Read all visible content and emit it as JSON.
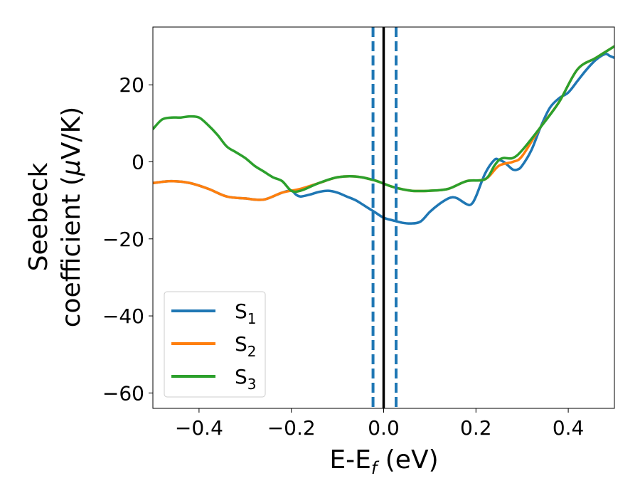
{
  "chart_data": {
    "type": "line",
    "title": "",
    "xlabel": "E-E",
    "xlabel_sub": "f",
    "xlabel_unit": " (eV)",
    "ylabel_line1": "Seebeck",
    "ylabel_line2": "coefficient  (",
    "ylabel_mu": "μ",
    "ylabel_unit": "V/K)",
    "xlim": [
      -0.5,
      0.5
    ],
    "ylim": [
      -64,
      35
    ],
    "xticks": [
      -0.4,
      -0.2,
      0.0,
      0.2,
      0.4
    ],
    "xtick_labels": [
      "−0.4",
      "−0.2",
      "0.0",
      "0.2",
      "0.4"
    ],
    "yticks": [
      20,
      0,
      -20,
      -40,
      -60
    ],
    "ytick_labels": [
      "20",
      "0",
      "−20",
      "−40",
      "−60"
    ],
    "grid": false,
    "legend_position": "lower-left",
    "vlines": [
      {
        "x": 0.0,
        "style": "solid",
        "color": "#000000"
      },
      {
        "x": -0.023,
        "style": "dashed",
        "color": "#1f77b4"
      },
      {
        "x": 0.027,
        "style": "dashed",
        "color": "#1f77b4"
      }
    ],
    "series": [
      {
        "name": "S",
        "sub": "1",
        "color": "#1f77b4",
        "x": [
          -0.5,
          -0.46,
          -0.42,
          -0.38,
          -0.34,
          -0.3,
          -0.26,
          -0.22,
          -0.2,
          -0.19,
          -0.18,
          -0.16,
          -0.14,
          -0.12,
          -0.1,
          -0.08,
          -0.06,
          -0.04,
          -0.02,
          0.0,
          0.02,
          0.04,
          0.06,
          0.08,
          0.1,
          0.12,
          0.14,
          0.15,
          0.16,
          0.18,
          0.19,
          0.2,
          0.22,
          0.24,
          0.25,
          0.26,
          0.27,
          0.28,
          0.29,
          0.3,
          0.32,
          0.34,
          0.36,
          0.38,
          0.4,
          0.42,
          0.44,
          0.46,
          0.48,
          0.49,
          0.5
        ],
        "y": [
          -5.5,
          -5,
          -5.5,
          -7,
          -9,
          -9.5,
          -9.8,
          -8,
          -7.5,
          -8.5,
          -9,
          -8.5,
          -7.8,
          -7.5,
          -8,
          -9,
          -10,
          -11.5,
          -13,
          -14.5,
          -15.2,
          -15.8,
          -16,
          -15.5,
          -13,
          -11,
          -9.5,
          -9.2,
          -9.5,
          -11,
          -11,
          -9,
          -3,
          0.5,
          0.5,
          0,
          -1,
          -2,
          -2,
          -1,
          3,
          9,
          14,
          16.5,
          18,
          21,
          24,
          26.5,
          28,
          27.5,
          27
        ]
      },
      {
        "name": "S",
        "sub": "2",
        "color": "#ff7f0e",
        "x": [
          -0.5,
          -0.46,
          -0.42,
          -0.38,
          -0.34,
          -0.3,
          -0.26,
          -0.22,
          -0.18,
          -0.14,
          -0.1,
          -0.06,
          -0.02,
          0.02,
          0.06,
          0.1,
          0.14,
          0.18,
          0.22,
          0.25,
          0.28,
          0.3,
          0.34,
          0.38,
          0.42,
          0.46,
          0.5
        ],
        "y": [
          -5.5,
          -5,
          -5.5,
          -7,
          -9,
          -9.5,
          -9.8,
          -8,
          -7,
          -5.5,
          -4,
          -3.8,
          -4.8,
          -6.5,
          -7.5,
          -7.5,
          -7,
          -5,
          -4.5,
          -1,
          0,
          1.5,
          9,
          15.5,
          24,
          27,
          30
        ]
      },
      {
        "name": "S",
        "sub": "3",
        "color": "#2ca02c",
        "x": [
          -0.5,
          -0.48,
          -0.46,
          -0.44,
          -0.42,
          -0.4,
          -0.38,
          -0.36,
          -0.34,
          -0.32,
          -0.3,
          -0.28,
          -0.26,
          -0.24,
          -0.22,
          -0.2,
          -0.18,
          -0.14,
          -0.1,
          -0.06,
          -0.02,
          0.02,
          0.06,
          0.1,
          0.14,
          0.18,
          0.22,
          0.24,
          0.25,
          0.26,
          0.28,
          0.3,
          0.34,
          0.38,
          0.42,
          0.46,
          0.5
        ],
        "y": [
          8.5,
          11,
          11.5,
          11.5,
          11.8,
          11.5,
          9.5,
          7,
          4,
          2.5,
          1,
          -1,
          -2.5,
          -4,
          -5,
          -7.5,
          -7.5,
          -5.5,
          -4,
          -3.8,
          -4.8,
          -6.5,
          -7.5,
          -7.5,
          -7,
          -5,
          -4.5,
          -1,
          0.5,
          1,
          1,
          3,
          9,
          15.5,
          24,
          27,
          30
        ]
      }
    ]
  }
}
